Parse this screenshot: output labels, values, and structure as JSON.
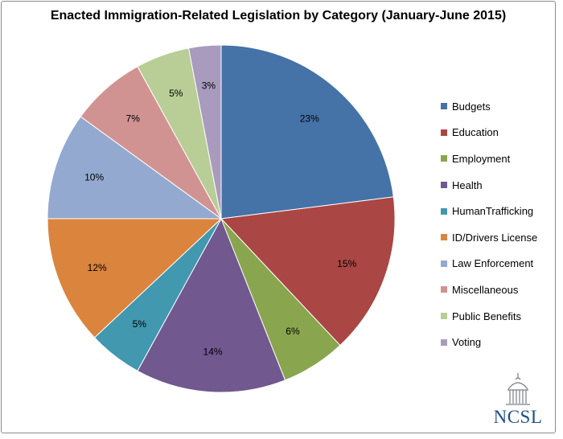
{
  "chart_data": {
    "type": "pie",
    "title": "Enacted Immigration-Related Legislation by Category (January-June 2015)",
    "legend_position": "right",
    "categories": [
      "Budgets",
      "Education",
      "Employment",
      "Health",
      "HumanTrafficking",
      "ID/Drivers License",
      "Law Enforcement",
      "Miscellaneous",
      "Public Benefits",
      "Voting"
    ],
    "values": [
      23,
      15,
      6,
      14,
      5,
      12,
      10,
      7,
      5,
      3
    ],
    "data_labels": [
      "23%",
      "15%",
      "6%",
      "14%",
      "5%",
      "12%",
      "10%",
      "7%",
      "5%",
      "3%"
    ],
    "colors": [
      "#4572a7",
      "#aa4643",
      "#89a54e",
      "#71588f",
      "#4198af",
      "#db843d",
      "#93a9cf",
      "#d19392",
      "#b9cd96",
      "#a99bbd"
    ]
  },
  "logo": {
    "text": "NCSL",
    "icon": "capitol-dome-icon"
  }
}
